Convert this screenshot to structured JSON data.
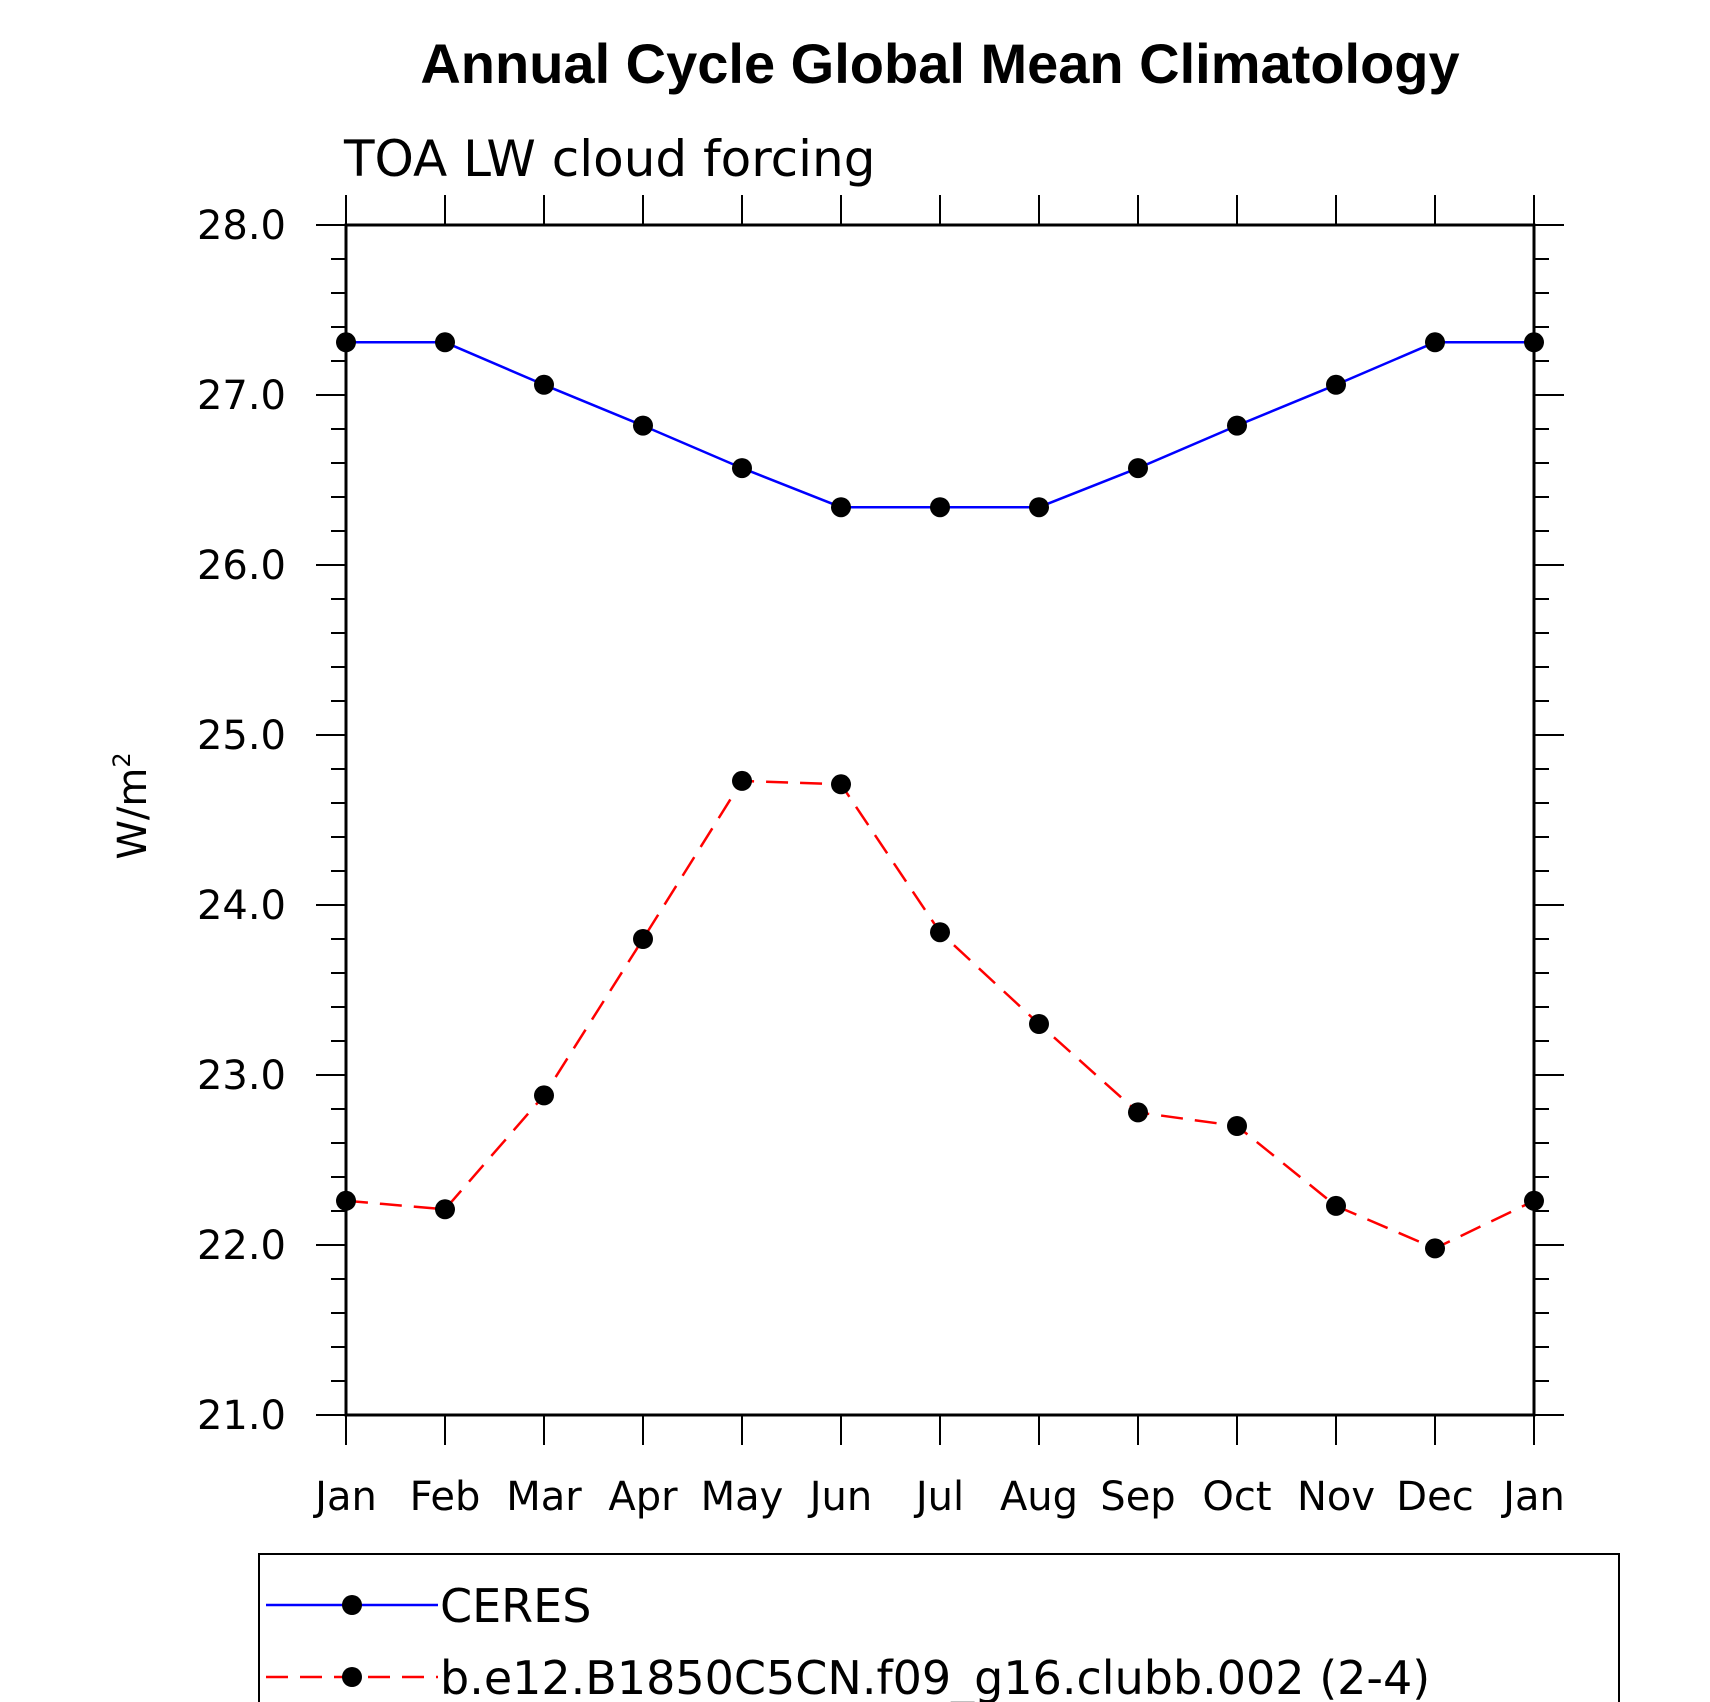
{
  "chart_data": {
    "type": "line",
    "title": "Annual Cycle Global Mean Climatology",
    "subtitle": "TOA LW cloud forcing",
    "ylabel": "W/m",
    "ylabel_superscript": "2",
    "xlabel": "",
    "ylim": [
      21.0,
      28.0
    ],
    "yticks": [
      "21.0",
      "22.0",
      "23.0",
      "24.0",
      "25.0",
      "26.0",
      "27.0",
      "28.0"
    ],
    "categories": [
      "Jan",
      "Feb",
      "Mar",
      "Apr",
      "May",
      "Jun",
      "Jul",
      "Aug",
      "Sep",
      "Oct",
      "Nov",
      "Dec",
      "Jan"
    ],
    "series": [
      {
        "name": "CERES",
        "color": "#0000ff",
        "dash": "solid",
        "values": [
          27.31,
          27.31,
          27.06,
          26.82,
          26.57,
          26.34,
          26.34,
          26.34,
          26.57,
          26.82,
          27.06,
          27.31,
          27.31
        ]
      },
      {
        "name": "b.e12.B1850C5CN.f09_g16.clubb.002 (2-4)",
        "color": "#ff0000",
        "dash": "dashed",
        "values": [
          22.26,
          22.21,
          22.88,
          23.8,
          24.73,
          24.71,
          23.84,
          23.3,
          22.78,
          22.7,
          22.23,
          21.98,
          22.26
        ]
      }
    ],
    "marker_color": "#000000",
    "legend_position": "bottom",
    "grid": false
  }
}
